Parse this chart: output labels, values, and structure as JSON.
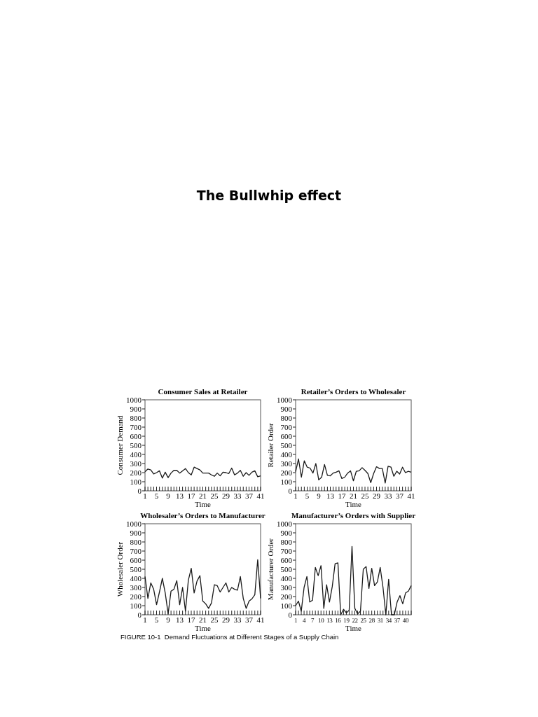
{
  "chart_data": [
    {
      "type": "other",
      "title": "The Bullwhip effect",
      "annotations": [
        "FIGURE 10-1  Demand Fluctuations at Different Stages of a Supply Chain"
      ]
    },
    {
      "type": "line",
      "title": "Consumer Sales at Retailer",
      "xlabel": "Time",
      "ylabel": "Consumer Demand",
      "xlim": [
        1,
        41
      ],
      "ylim": [
        0,
        1000
      ],
      "yticks": [
        0,
        100,
        200,
        300,
        400,
        500,
        600,
        700,
        800,
        900,
        1000
      ],
      "xticks": [
        1,
        {
          "value": 2,
          "label": null
        },
        {
          "value": 3,
          "label": null
        },
        {
          "value": 4,
          "label": null
        },
        5,
        {
          "value": 6,
          "label": null
        },
        {
          "value": 7,
          "label": null
        },
        {
          "value": 8,
          "label": null
        },
        9,
        {
          "value": 10,
          "label": null
        },
        {
          "value": 11,
          "label": null
        },
        {
          "value": 12,
          "label": null
        },
        13,
        {
          "value": 14,
          "label": null
        },
        {
          "value": 15,
          "label": null
        },
        {
          "value": 16,
          "label": null
        },
        17,
        {
          "value": 18,
          "label": null
        },
        {
          "value": 19,
          "label": null
        },
        {
          "value": 20,
          "label": null
        },
        21,
        {
          "value": 22,
          "label": null
        },
        {
          "value": 23,
          "label": null
        },
        {
          "value": 24,
          "label": null
        },
        25,
        {
          "value": 26,
          "label": null
        },
        {
          "value": 27,
          "label": null
        },
        {
          "value": 28,
          "label": null
        },
        29,
        {
          "value": 30,
          "label": null
        },
        {
          "value": 31,
          "label": null
        },
        {
          "value": 32,
          "label": null
        },
        33,
        {
          "value": 34,
          "label": null
        },
        {
          "value": 35,
          "label": null
        },
        {
          "value": 36,
          "label": null
        },
        37,
        {
          "value": 38,
          "label": null
        },
        {
          "value": 39,
          "label": null
        },
        {
          "value": 40,
          "label": null
        },
        41
      ],
      "series": [
        {
          "color": "#1a1a1a",
          "x": [
            1,
            2,
            3,
            4,
            5,
            6,
            7,
            8,
            9,
            10,
            11,
            12,
            13,
            14,
            15,
            16,
            17,
            18,
            19,
            20,
            21,
            22,
            23,
            24,
            25,
            26,
            27,
            28,
            29,
            30,
            31,
            32,
            33,
            34,
            35,
            36,
            37,
            38,
            39,
            40,
            41
          ],
          "values": [
            210,
            240,
            230,
            185,
            200,
            220,
            140,
            205,
            145,
            195,
            225,
            225,
            195,
            220,
            245,
            200,
            175,
            260,
            245,
            230,
            195,
            195,
            195,
            175,
            160,
            195,
            165,
            205,
            200,
            190,
            250,
            175,
            195,
            225,
            160,
            200,
            170,
            205,
            220,
            155,
            165
          ]
        }
      ]
    },
    {
      "type": "line",
      "title": "Retailer’s Orders to Wholesaler",
      "xlabel": "Time",
      "ylabel": "Retailer Order",
      "xlim": [
        1,
        41
      ],
      "ylim": [
        0,
        1000
      ],
      "yticks": [
        0,
        100,
        200,
        300,
        400,
        500,
        600,
        700,
        800,
        900,
        1000
      ],
      "xticks": [
        1,
        {
          "value": 2,
          "label": null
        },
        {
          "value": 3,
          "label": null
        },
        {
          "value": 4,
          "label": null
        },
        5,
        {
          "value": 6,
          "label": null
        },
        {
          "value": 7,
          "label": null
        },
        {
          "value": 8,
          "label": null
        },
        9,
        {
          "value": 10,
          "label": null
        },
        {
          "value": 11,
          "label": null
        },
        {
          "value": 12,
          "label": null
        },
        13,
        {
          "value": 14,
          "label": null
        },
        {
          "value": 15,
          "label": null
        },
        {
          "value": 16,
          "label": null
        },
        17,
        {
          "value": 18,
          "label": null
        },
        {
          "value": 19,
          "label": null
        },
        {
          "value": 20,
          "label": null
        },
        21,
        {
          "value": 22,
          "label": null
        },
        {
          "value": 23,
          "label": null
        },
        {
          "value": 24,
          "label": null
        },
        25,
        {
          "value": 26,
          "label": null
        },
        {
          "value": 27,
          "label": null
        },
        {
          "value": 28,
          "label": null
        },
        29,
        {
          "value": 30,
          "label": null
        },
        {
          "value": 31,
          "label": null
        },
        {
          "value": 32,
          "label": null
        },
        33,
        {
          "value": 34,
          "label": null
        },
        {
          "value": 35,
          "label": null
        },
        {
          "value": 36,
          "label": null
        },
        37,
        {
          "value": 38,
          "label": null
        },
        {
          "value": 39,
          "label": null
        },
        {
          "value": 40,
          "label": null
        },
        41
      ],
      "series": [
        {
          "color": "#1a1a1a",
          "x": [
            1,
            2,
            3,
            4,
            5,
            6,
            7,
            8,
            9,
            10,
            11,
            12,
            13,
            14,
            15,
            16,
            17,
            18,
            19,
            20,
            21,
            22,
            23,
            24,
            25,
            26,
            27,
            28,
            29,
            30,
            31,
            32,
            33,
            34,
            35,
            36,
            37,
            38,
            39,
            40,
            41
          ],
          "values": [
            210,
            350,
            150,
            330,
            260,
            250,
            195,
            300,
            120,
            150,
            290,
            170,
            165,
            195,
            205,
            220,
            135,
            150,
            195,
            220,
            110,
            215,
            220,
            255,
            225,
            190,
            90,
            190,
            265,
            245,
            245,
            85,
            270,
            260,
            160,
            215,
            185,
            260,
            200,
            215,
            205
          ]
        }
      ]
    },
    {
      "type": "line",
      "title": "Wholesaler’s Orders to Manufacturer",
      "xlabel": "Time",
      "ylabel": "Wholesaler Order",
      "xlim": [
        1,
        41
      ],
      "ylim": [
        0,
        1000
      ],
      "yticks": [
        0,
        100,
        200,
        300,
        400,
        500,
        600,
        700,
        800,
        900,
        1000
      ],
      "xticks": [
        1,
        {
          "value": 2,
          "label": null
        },
        {
          "value": 3,
          "label": null
        },
        {
          "value": 4,
          "label": null
        },
        5,
        {
          "value": 6,
          "label": null
        },
        {
          "value": 7,
          "label": null
        },
        {
          "value": 8,
          "label": null
        },
        9,
        {
          "value": 10,
          "label": null
        },
        {
          "value": 11,
          "label": null
        },
        {
          "value": 12,
          "label": null
        },
        13,
        {
          "value": 14,
          "label": null
        },
        {
          "value": 15,
          "label": null
        },
        {
          "value": 16,
          "label": null
        },
        17,
        {
          "value": 18,
          "label": null
        },
        {
          "value": 19,
          "label": null
        },
        {
          "value": 20,
          "label": null
        },
        21,
        {
          "value": 22,
          "label": null
        },
        {
          "value": 23,
          "label": null
        },
        {
          "value": 24,
          "label": null
        },
        25,
        {
          "value": 26,
          "label": null
        },
        {
          "value": 27,
          "label": null
        },
        {
          "value": 28,
          "label": null
        },
        29,
        {
          "value": 30,
          "label": null
        },
        {
          "value": 31,
          "label": null
        },
        {
          "value": 32,
          "label": null
        },
        33,
        {
          "value": 34,
          "label": null
        },
        {
          "value": 35,
          "label": null
        },
        {
          "value": 36,
          "label": null
        },
        37,
        {
          "value": 38,
          "label": null
        },
        {
          "value": 39,
          "label": null
        },
        {
          "value": 40,
          "label": null
        },
        41
      ],
      "series": [
        {
          "color": "#1a1a1a",
          "x": [
            1,
            2,
            3,
            4,
            5,
            6,
            7,
            8,
            9,
            10,
            11,
            12,
            13,
            14,
            15,
            16,
            17,
            18,
            19,
            20,
            21,
            22,
            23,
            24,
            25,
            26,
            27,
            28,
            29,
            30,
            31,
            32,
            33,
            34,
            35,
            36,
            37,
            38,
            39,
            40,
            41
          ],
          "values": [
            420,
            180,
            350,
            280,
            110,
            250,
            400,
            240,
            10,
            260,
            280,
            375,
            110,
            300,
            40,
            380,
            510,
            240,
            370,
            430,
            150,
            120,
            70,
            130,
            330,
            320,
            250,
            300,
            350,
            250,
            300,
            280,
            270,
            420,
            180,
            70,
            150,
            175,
            220,
            605,
            180
          ]
        }
      ]
    },
    {
      "type": "line",
      "title": "Manufacturer’s Orders with Supplier",
      "xlabel": "Time",
      "ylabel": "Manufacturer Order",
      "xlim": [
        1,
        42
      ],
      "ylim": [
        0,
        1000
      ],
      "yticks": [
        0,
        100,
        200,
        300,
        400,
        500,
        600,
        700,
        800,
        900,
        1000
      ],
      "xticks": [
        1,
        {
          "value": 2,
          "label": null
        },
        {
          "value": 3,
          "label": null
        },
        4,
        {
          "value": 5,
          "label": null
        },
        {
          "value": 6,
          "label": null
        },
        7,
        {
          "value": 8,
          "label": null
        },
        {
          "value": 9,
          "label": null
        },
        10,
        {
          "value": 11,
          "label": null
        },
        {
          "value": 12,
          "label": null
        },
        13,
        {
          "value": 14,
          "label": null
        },
        {
          "value": 15,
          "label": null
        },
        16,
        {
          "value": 17,
          "label": null
        },
        {
          "value": 18,
          "label": null
        },
        19,
        {
          "value": 20,
          "label": null
        },
        {
          "value": 21,
          "label": null
        },
        22,
        {
          "value": 23,
          "label": null
        },
        {
          "value": 24,
          "label": null
        },
        25,
        {
          "value": 26,
          "label": null
        },
        {
          "value": 27,
          "label": null
        },
        28,
        {
          "value": 29,
          "label": null
        },
        {
          "value": 30,
          "label": null
        },
        31,
        {
          "value": 32,
          "label": null
        },
        {
          "value": 33,
          "label": null
        },
        34,
        {
          "value": 35,
          "label": null
        },
        {
          "value": 36,
          "label": null
        },
        37,
        {
          "value": 38,
          "label": null
        },
        {
          "value": 39,
          "label": null
        },
        40,
        {
          "value": 41,
          "label": null
        },
        {
          "value": 42,
          "label": null
        }
      ],
      "series": [
        {
          "color": "#1a1a1a",
          "x": [
            1,
            2,
            3,
            4,
            5,
            6,
            7,
            8,
            9,
            10,
            11,
            12,
            13,
            14,
            15,
            16,
            17,
            18,
            19,
            20,
            21,
            22,
            23,
            24,
            25,
            26,
            27,
            28,
            29,
            30,
            31,
            32,
            33,
            34,
            35,
            36,
            37,
            38,
            39,
            40,
            41,
            42
          ],
          "values": [
            100,
            150,
            40,
            300,
            420,
            140,
            160,
            520,
            430,
            540,
            70,
            330,
            140,
            310,
            560,
            570,
            0,
            60,
            20,
            50,
            750,
            70,
            10,
            40,
            500,
            530,
            290,
            510,
            320,
            360,
            520,
            300,
            0,
            390,
            0,
            0,
            140,
            210,
            120,
            240,
            260,
            320
          ]
        }
      ]
    }
  ]
}
